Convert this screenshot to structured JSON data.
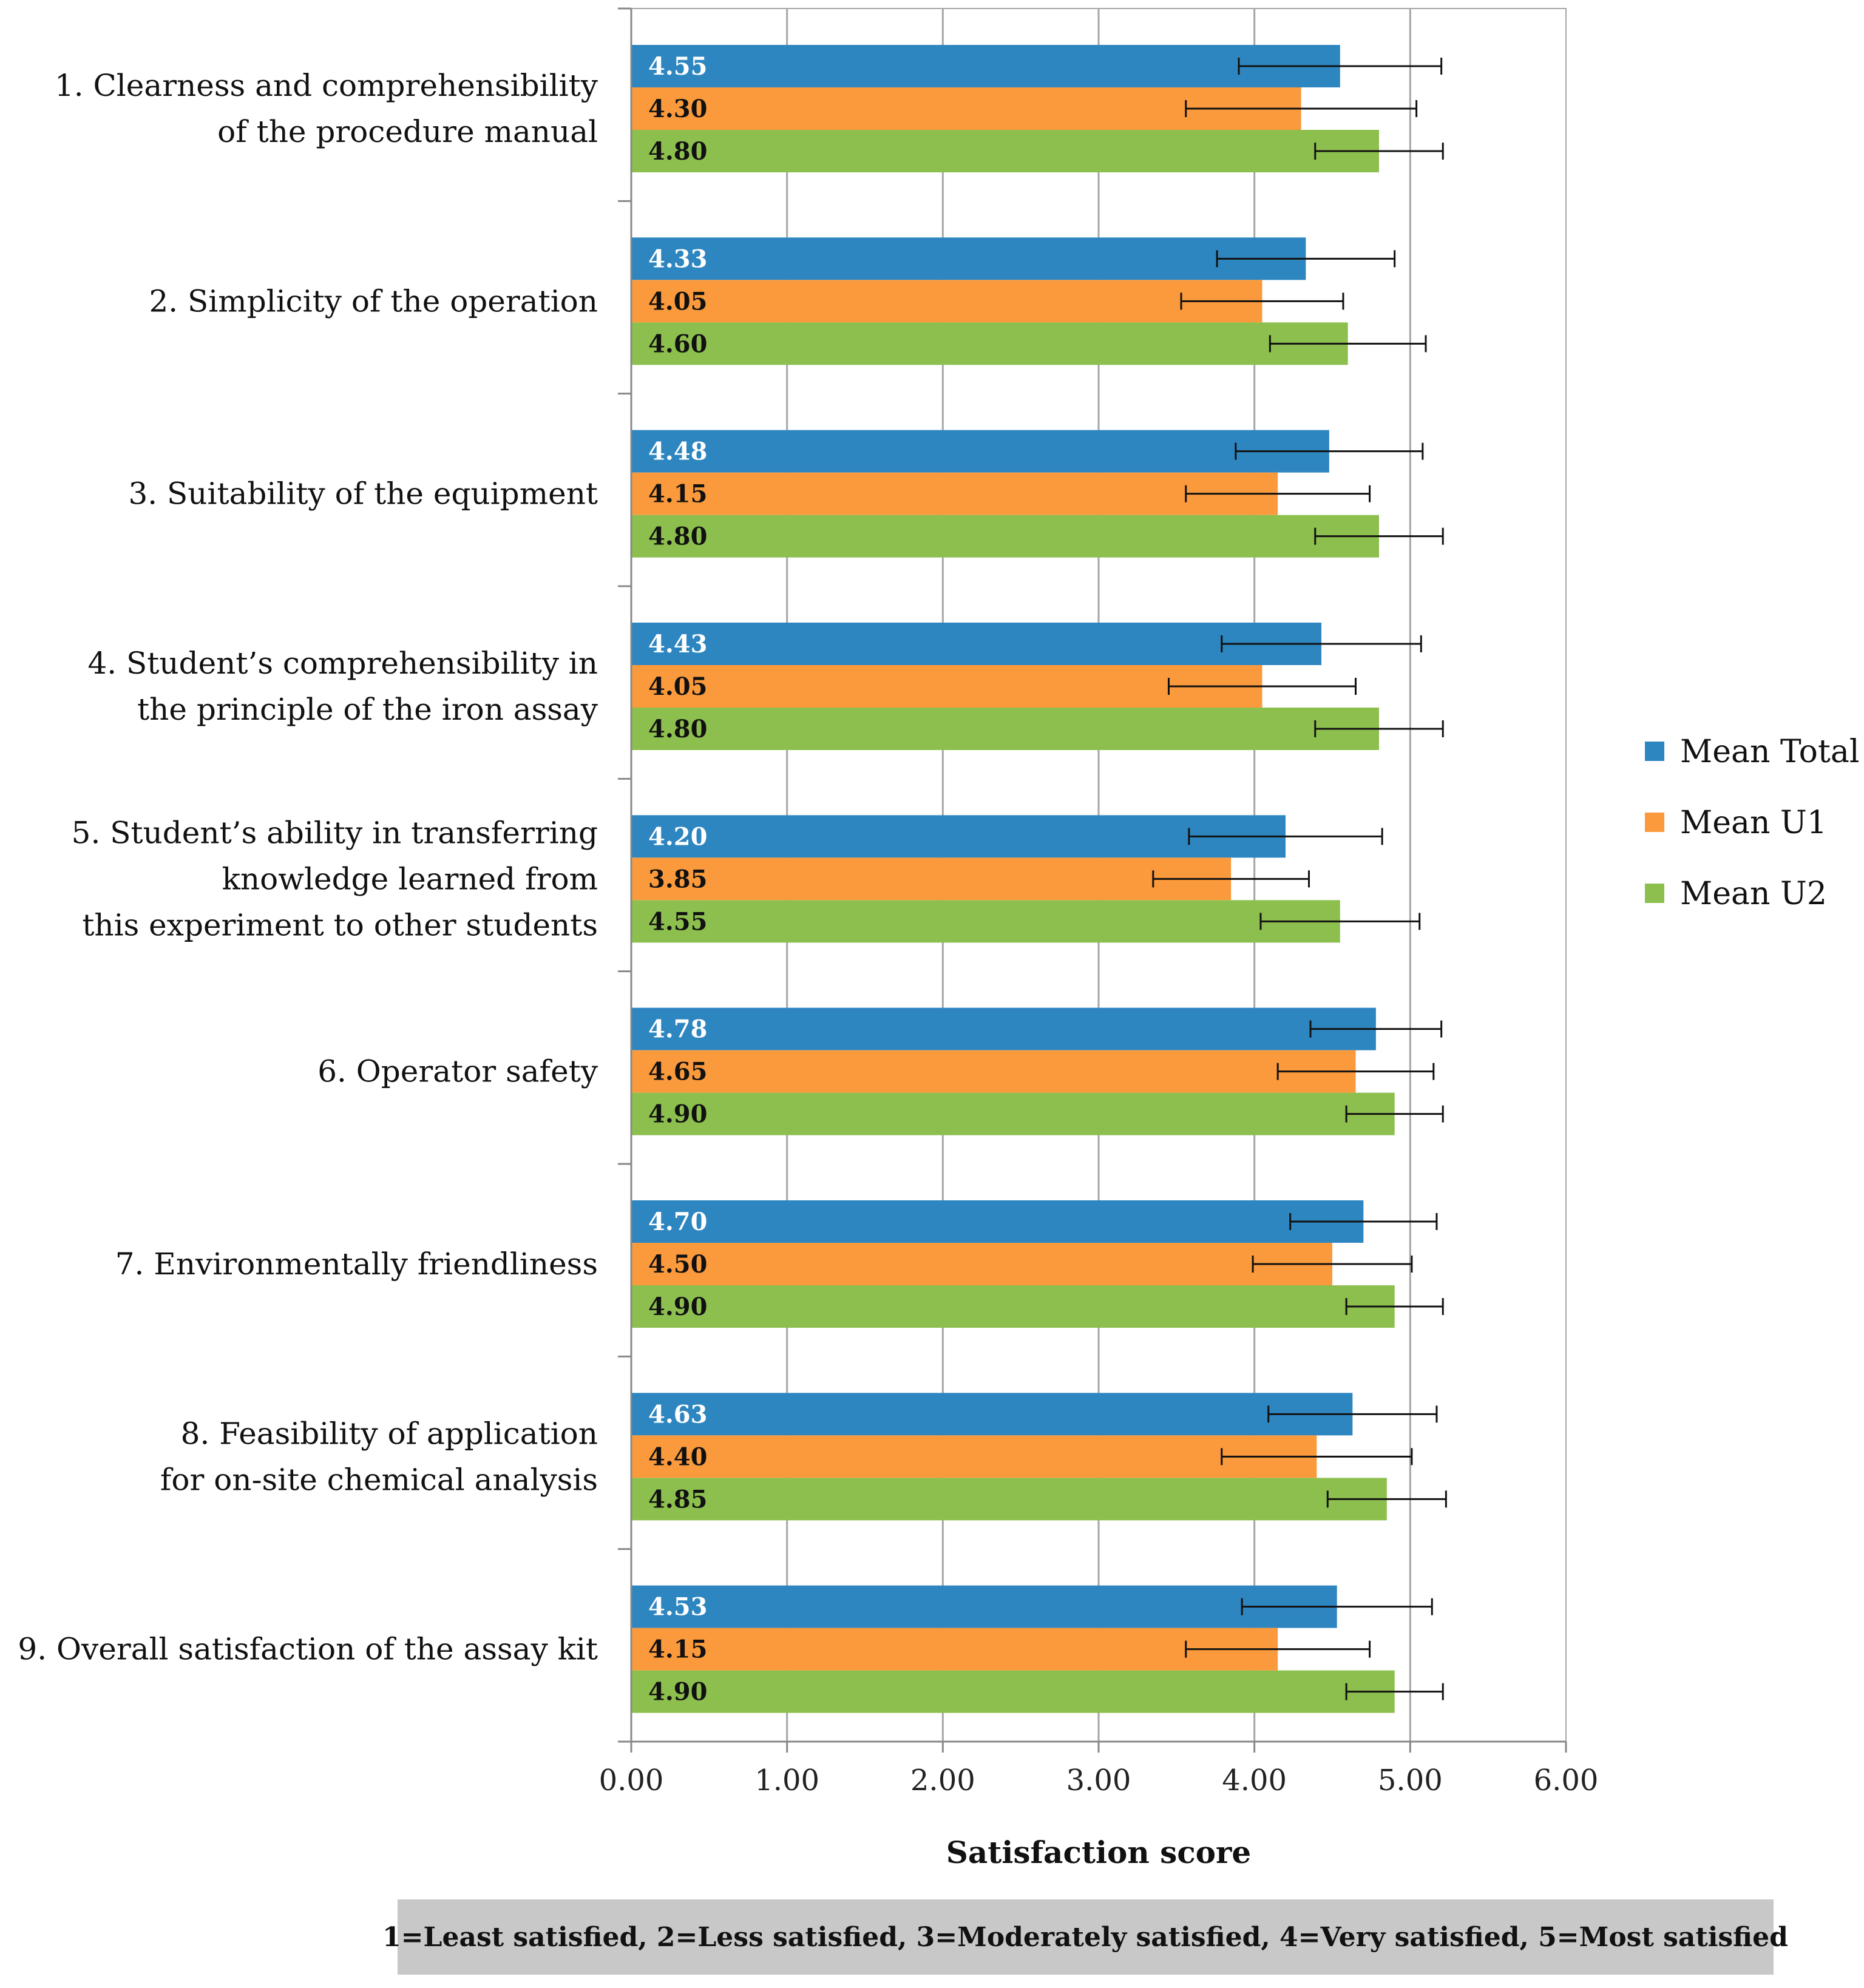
{
  "chart_data": {
    "type": "bar",
    "orientation": "horizontal",
    "title": "",
    "xlabel": "Satisfaction score",
    "ylabel": "",
    "xlim": [
      0,
      6
    ],
    "xticks": [
      "0.00",
      "1.00",
      "2.00",
      "3.00",
      "4.00",
      "5.00",
      "6.00"
    ],
    "grid": true,
    "legend_position": "right",
    "categories": [
      [
        "1. Clearness and comprehensibility",
        "of the procedure manual"
      ],
      [
        "2. Simplicity of the operation"
      ],
      [
        "3. Suitability of the equipment"
      ],
      [
        "4. Student’s comprehensibility in",
        "the principle of the iron assay"
      ],
      [
        "5. Student’s ability in transferring",
        "knowledge learned from",
        "this experiment to other students"
      ],
      [
        "6. Operator safety"
      ],
      [
        "7. Environmentally friendliness"
      ],
      [
        "8. Feasibility of application",
        "for on-site chemical analysis"
      ],
      [
        "9. Overall satisfaction of the assay kit"
      ]
    ],
    "series": [
      {
        "name": "Mean Total",
        "color": "#2e86c1",
        "label_color": "#ffffff",
        "values": [
          4.55,
          4.33,
          4.48,
          4.43,
          4.2,
          4.78,
          4.7,
          4.63,
          4.53
        ],
        "labels": [
          "4.55",
          "4.33",
          "4.48",
          "4.43",
          "4.20",
          "4.78",
          "4.70",
          "4.63",
          "4.53"
        ],
        "err_low": [
          3.9,
          3.76,
          3.88,
          3.79,
          3.58,
          4.36,
          4.23,
          4.09,
          3.92
        ],
        "err_high": [
          5.2,
          4.9,
          5.08,
          5.07,
          4.82,
          5.2,
          5.17,
          5.17,
          5.14
        ]
      },
      {
        "name": "Mean U1",
        "color": "#fb9a3c",
        "label_color": "#111111",
        "values": [
          4.3,
          4.05,
          4.15,
          4.05,
          3.85,
          4.65,
          4.5,
          4.4,
          4.15
        ],
        "labels": [
          "4.30",
          "4.05",
          "4.15",
          "4.05",
          "3.85",
          "4.65",
          "4.50",
          "4.40",
          "4.15"
        ],
        "err_low": [
          3.56,
          3.53,
          3.56,
          3.45,
          3.35,
          4.15,
          3.99,
          3.79,
          3.56
        ],
        "err_high": [
          5.04,
          4.57,
          4.74,
          4.65,
          4.35,
          5.15,
          5.01,
          5.01,
          4.74
        ]
      },
      {
        "name": "Mean U2",
        "color": "#8dbf4e",
        "label_color": "#111111",
        "values": [
          4.8,
          4.6,
          4.8,
          4.8,
          4.55,
          4.9,
          4.9,
          4.85,
          4.9
        ],
        "labels": [
          "4.80",
          "4.60",
          "4.80",
          "4.80",
          "4.55",
          "4.90",
          "4.90",
          "4.85",
          "4.90"
        ],
        "err_low": [
          4.39,
          4.1,
          4.39,
          4.39,
          4.04,
          4.59,
          4.59,
          4.47,
          4.59
        ],
        "err_high": [
          5.21,
          5.1,
          5.21,
          5.21,
          5.06,
          5.21,
          5.21,
          5.23,
          5.21
        ]
      }
    ],
    "footnote": "1=Least satisfied, 2=Less satisfied, 3=Moderately satisfied, 4=Very satisfied, 5=Most satisfied"
  }
}
